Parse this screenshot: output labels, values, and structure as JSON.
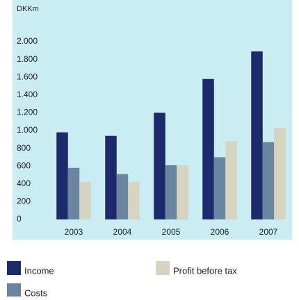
{
  "chart_data": {
    "type": "bar",
    "y_label": "DKKm",
    "categories": [
      "2003",
      "2004",
      "2005",
      "2006",
      "2007"
    ],
    "series": [
      {
        "name": "Income",
        "color": "#1c2a6b",
        "values": [
          980,
          940,
          1200,
          1580,
          1890
        ]
      },
      {
        "name": "Costs",
        "color": "#6b84a0",
        "values": [
          580,
          510,
          610,
          700,
          870
        ]
      },
      {
        "name": "Profit before tax",
        "color": "#d6d3c0",
        "values": [
          420,
          420,
          610,
          880,
          1030
        ]
      }
    ],
    "ylim": [
      0,
      2000
    ],
    "yticks": [
      0,
      200,
      400,
      600,
      800,
      {
        "value": 1000,
        "label": "1.000"
      },
      {
        "value": 1200,
        "label": "1.200"
      },
      {
        "value": 1400,
        "label": "1.400"
      },
      {
        "value": 1600,
        "label": "1.600"
      },
      {
        "value": 1800,
        "label": "1.800"
      },
      {
        "value": 2000,
        "label": "2.000"
      }
    ],
    "grid": false,
    "legend": "bottom",
    "background": "#c9edf3"
  }
}
